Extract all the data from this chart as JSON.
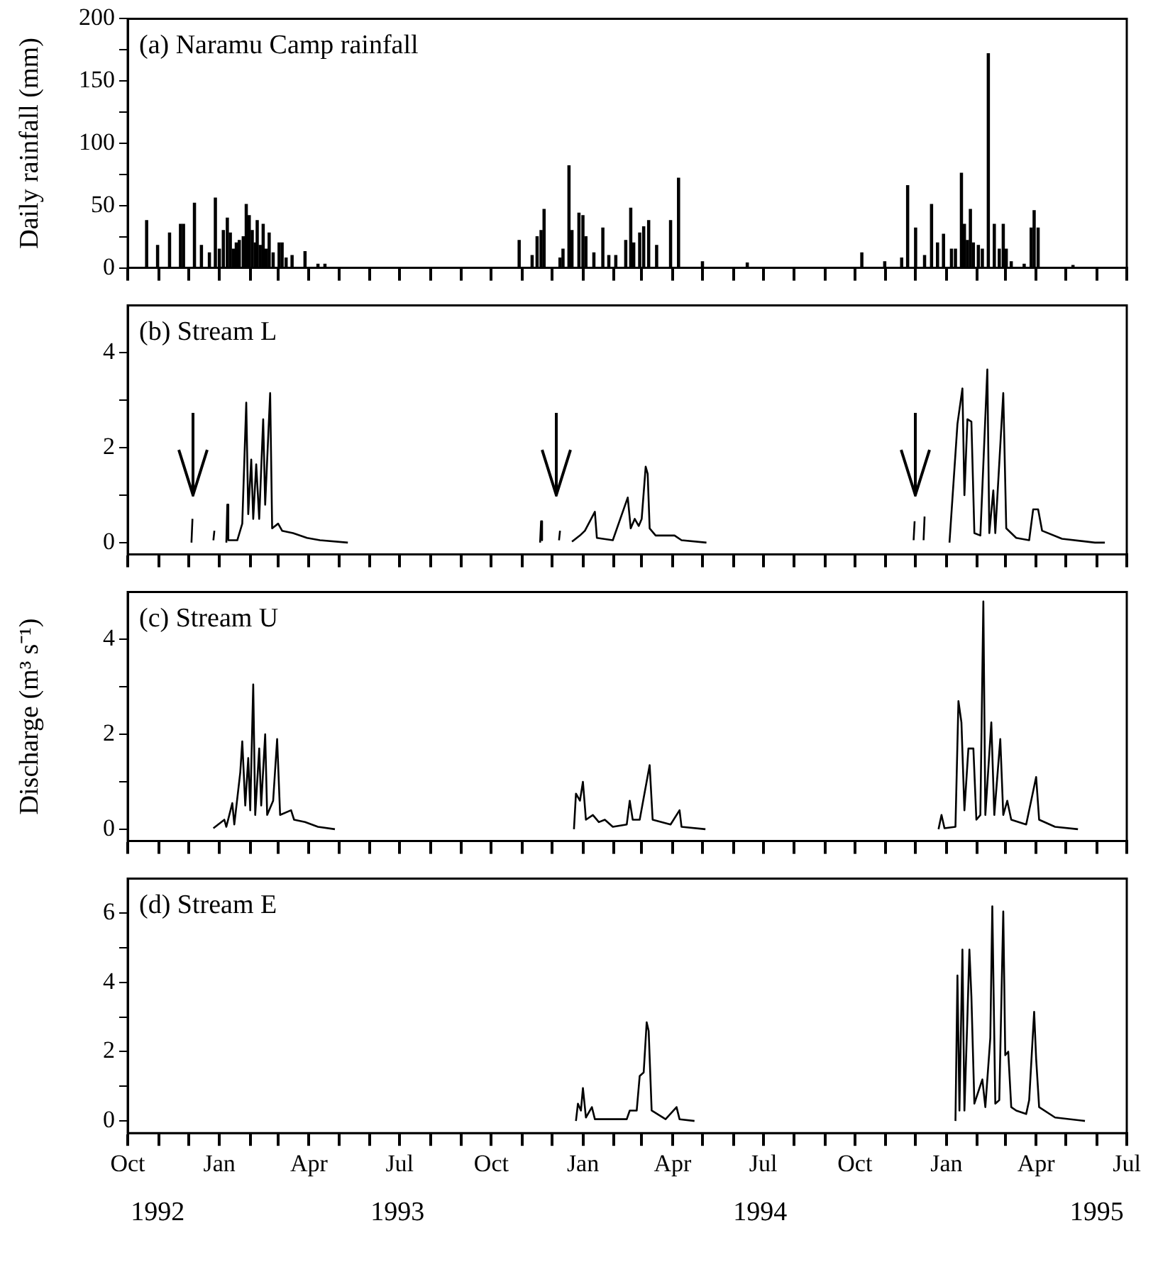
{
  "chart_data": [
    {
      "type": "bar",
      "title": "(a) Naramu Camp rainfall",
      "ylabel": "Daily rainfall (mm)",
      "tick_labels": "y",
      "grid": false,
      "legend": false,
      "xlim": [
        "1992-10-01",
        "1995-07-01"
      ],
      "xticks": [
        {
          "value": "1992-10-01",
          "label": null
        },
        {
          "value": "1992-11-01",
          "label": null
        },
        {
          "value": "1992-12-01",
          "label": null
        },
        {
          "value": "1993-01-01",
          "label": null
        },
        {
          "value": "1993-02-01",
          "label": null
        },
        {
          "value": "1993-03-01",
          "label": null
        },
        {
          "value": "1993-04-01",
          "label": null
        },
        {
          "value": "1993-05-01",
          "label": null
        },
        {
          "value": "1993-06-01",
          "label": null
        },
        {
          "value": "1993-07-01",
          "label": null
        },
        {
          "value": "1993-08-01",
          "label": null
        },
        {
          "value": "1993-09-01",
          "label": null
        },
        {
          "value": "1993-10-01",
          "label": null
        },
        {
          "value": "1993-11-01",
          "label": null
        },
        {
          "value": "1993-12-01",
          "label": null
        },
        {
          "value": "1994-01-01",
          "label": null
        },
        {
          "value": "1994-02-01",
          "label": null
        },
        {
          "value": "1994-03-01",
          "label": null
        },
        {
          "value": "1994-04-01",
          "label": null
        },
        {
          "value": "1994-05-01",
          "label": null
        },
        {
          "value": "1994-06-01",
          "label": null
        },
        {
          "value": "1994-07-01",
          "label": null
        },
        {
          "value": "1994-08-01",
          "label": null
        },
        {
          "value": "1994-09-01",
          "label": null
        },
        {
          "value": "1994-10-01",
          "label": null
        },
        {
          "value": "1994-11-01",
          "label": null
        },
        {
          "value": "1994-12-01",
          "label": null
        },
        {
          "value": "1995-01-01",
          "label": null
        },
        {
          "value": "1995-02-01",
          "label": null
        },
        {
          "value": "1995-03-01",
          "label": null
        },
        {
          "value": "1995-04-01",
          "label": null
        },
        {
          "value": "1995-05-01",
          "label": null
        },
        {
          "value": "1995-06-01",
          "label": null
        },
        {
          "value": "1995-07-01",
          "label": null
        }
      ],
      "ylim": [
        0,
        200
      ],
      "yticks": [
        0,
        {
          "value": 25,
          "label": null
        },
        50,
        {
          "value": 75,
          "label": null
        },
        100,
        {
          "value": 125,
          "label": null
        },
        150,
        {
          "value": 175,
          "label": null
        },
        200
      ],
      "series": [
        {
          "color": "#000000",
          "x": [
            "1992-10-20",
            "1992-10-31",
            "1992-11-12",
            "1992-11-23",
            "1992-11-26",
            "1992-12-07",
            "1992-12-14",
            "1992-12-22",
            "1992-12-28",
            "1993-01-01",
            "1993-01-05",
            "1993-01-09",
            "1993-01-12",
            "1993-01-15",
            "1993-01-18",
            "1993-01-21",
            "1993-01-25",
            "1993-01-28",
            "1993-01-31",
            "1993-02-03",
            "1993-02-06",
            "1993-02-08",
            "1993-02-11",
            "1993-02-14",
            "1993-02-17",
            "1993-02-20",
            "1993-02-24",
            "1993-03-02",
            "1993-03-05",
            "1993-03-09",
            "1993-03-15",
            "1993-03-28",
            "1993-04-10",
            "1993-04-17",
            "1993-10-29",
            "1993-11-11",
            "1993-11-16",
            "1993-11-20",
            "1993-11-23",
            "1993-12-09",
            "1993-12-12",
            "1993-12-18",
            "1993-12-21",
            "1993-12-28",
            "1994-01-01",
            "1994-01-04",
            "1994-01-12",
            "1994-01-21",
            "1994-01-27",
            "1994-02-03",
            "1994-02-13",
            "1994-02-18",
            "1994-02-21",
            "1994-02-27",
            "1994-03-03",
            "1994-03-08",
            "1994-03-16",
            "1994-03-30",
            "1994-04-07",
            "1994-05-01",
            "1994-06-15",
            "1994-10-08",
            "1994-10-31",
            "1994-11-17",
            "1994-11-23",
            "1994-12-01",
            "1994-12-10",
            "1994-12-17",
            "1994-12-23",
            "1994-12-29",
            "1995-01-06",
            "1995-01-10",
            "1995-01-16",
            "1995-01-19",
            "1995-01-22",
            "1995-01-25",
            "1995-01-28",
            "1995-02-02",
            "1995-02-06",
            "1995-02-12",
            "1995-02-18",
            "1995-02-23",
            "1995-02-27",
            "1995-03-02",
            "1995-03-07",
            "1995-03-20",
            "1995-03-27",
            "1995-03-30",
            "1995-04-03",
            "1995-05-08"
          ],
          "values": [
            38,
            18,
            28,
            35,
            35,
            52,
            18,
            12,
            56,
            15,
            30,
            40,
            28,
            15,
            20,
            22,
            25,
            51,
            42,
            30,
            20,
            38,
            18,
            35,
            15,
            28,
            12,
            20,
            20,
            8,
            10,
            13,
            3,
            3,
            22,
            10,
            25,
            30,
            47,
            8,
            15,
            82,
            30,
            44,
            42,
            25,
            12,
            32,
            10,
            10,
            22,
            48,
            20,
            28,
            33,
            38,
            18,
            38,
            72,
            5,
            4,
            12,
            5,
            8,
            66,
            32,
            10,
            51,
            20,
            27,
            15,
            15,
            76,
            35,
            22,
            47,
            20,
            18,
            15,
            172,
            35,
            15,
            35,
            15,
            5,
            3,
            32,
            46,
            32,
            2
          ]
        }
      ]
    },
    {
      "type": "line",
      "title": "(b) Stream L",
      "tick_labels": "y",
      "grid": false,
      "legend": false,
      "xlim": [
        "1992-10-01",
        "1995-07-01"
      ],
      "xticks": [
        {
          "value": "1992-10-01",
          "label": null
        },
        {
          "value": "1992-11-01",
          "label": null
        },
        {
          "value": "1992-12-01",
          "label": null
        },
        {
          "value": "1993-01-01",
          "label": null
        },
        {
          "value": "1993-02-01",
          "label": null
        },
        {
          "value": "1993-03-01",
          "label": null
        },
        {
          "value": "1993-04-01",
          "label": null
        },
        {
          "value": "1993-05-01",
          "label": null
        },
        {
          "value": "1993-06-01",
          "label": null
        },
        {
          "value": "1993-07-01",
          "label": null
        },
        {
          "value": "1993-08-01",
          "label": null
        },
        {
          "value": "1993-09-01",
          "label": null
        },
        {
          "value": "1993-10-01",
          "label": null
        },
        {
          "value": "1993-11-01",
          "label": null
        },
        {
          "value": "1993-12-01",
          "label": null
        },
        {
          "value": "1994-01-01",
          "label": null
        },
        {
          "value": "1994-02-01",
          "label": null
        },
        {
          "value": "1994-03-01",
          "label": null
        },
        {
          "value": "1994-04-01",
          "label": null
        },
        {
          "value": "1994-05-01",
          "label": null
        },
        {
          "value": "1994-06-01",
          "label": null
        },
        {
          "value": "1994-07-01",
          "label": null
        },
        {
          "value": "1994-08-01",
          "label": null
        },
        {
          "value": "1994-09-01",
          "label": null
        },
        {
          "value": "1994-10-01",
          "label": null
        },
        {
          "value": "1994-11-01",
          "label": null
        },
        {
          "value": "1994-12-01",
          "label": null
        },
        {
          "value": "1995-01-01",
          "label": null
        },
        {
          "value": "1995-02-01",
          "label": null
        },
        {
          "value": "1995-03-01",
          "label": null
        },
        {
          "value": "1995-04-01",
          "label": null
        },
        {
          "value": "1995-05-01",
          "label": null
        },
        {
          "value": "1995-06-01",
          "label": null
        },
        {
          "value": "1995-07-01",
          "label": null
        }
      ],
      "ylim": [
        -0.25,
        5
      ],
      "yticks": [
        0,
        {
          "value": 1,
          "label": null
        },
        2,
        {
          "value": 3,
          "label": null
        },
        4
      ],
      "series": [
        {
          "color": "#000000",
          "x": [
            "1992-12-04",
            "1992-12-05",
            "1992-12-06",
            "1992-12-26",
            "1992-12-27",
            "1992-12-28",
            "1993-01-08",
            "1993-01-09",
            "1993-01-10",
            "1993-01-19",
            "1993-01-24",
            "1993-01-28",
            "1993-01-30",
            "1993-02-02",
            "1993-02-04",
            "1993-02-07",
            "1993-02-10",
            "1993-02-14",
            "1993-02-16",
            "1993-02-21",
            "1993-02-23",
            "1993-03-01",
            "1993-03-05",
            "1993-03-16",
            "1993-03-30",
            "1993-04-12",
            "1993-05-10",
            "1993-05-11",
            "1993-11-19",
            "1993-11-20",
            "1993-11-21",
            "1993-11-22",
            "1993-12-08",
            "1993-12-09",
            "1993-12-10",
            "1993-12-21",
            "1993-12-29",
            "1994-01-03",
            "1994-01-13",
            "1994-01-15",
            "1994-01-31",
            "1994-02-15",
            "1994-02-18",
            "1994-02-22",
            "1994-02-26",
            "1994-03-01",
            "1994-03-05",
            "1994-03-07",
            "1994-03-09",
            "1994-03-15",
            "1994-04-03",
            "1994-04-10",
            "1994-05-05",
            "1994-05-06",
            "1994-11-29",
            "1994-11-30",
            "1994-12-01",
            "1994-12-09",
            "1994-12-10",
            "1994-12-11",
            "1995-01-04",
            "1995-01-12",
            "1995-01-17",
            "1995-01-19",
            "1995-01-22",
            "1995-01-26",
            "1995-01-29",
            "1995-02-04",
            "1995-02-11",
            "1995-02-13",
            "1995-02-17",
            "1995-02-19",
            "1995-02-27",
            "1995-03-02",
            "1995-03-12",
            "1995-03-25",
            "1995-03-29",
            "1995-04-03",
            "1995-04-07",
            "1995-04-27",
            "1995-05-30",
            "1995-06-09"
          ],
          "values": [
            0,
            0.5,
            null,
            0.05,
            0.25,
            null,
            0,
            0.8,
            0.05,
            0.05,
            0.4,
            2.95,
            0.6,
            1.75,
            0.5,
            1.65,
            0.5,
            2.6,
            0.8,
            3.15,
            0.3,
            0.4,
            0.25,
            0.2,
            0.1,
            0.05,
            0,
            null,
            0,
            0.45,
            0.05,
            null,
            0.05,
            0.25,
            null,
            0.02,
            0.15,
            0.25,
            0.65,
            0.1,
            0.05,
            0.95,
            0.3,
            0.5,
            0.35,
            0.5,
            1.6,
            1.45,
            0.3,
            0.15,
            0.15,
            0.05,
            0,
            null,
            0.05,
            0.45,
            null,
            0.05,
            0.55,
            null,
            0,
            2.5,
            3.25,
            1.0,
            2.6,
            2.55,
            0.2,
            0.15,
            3.65,
            0.2,
            1.1,
            0.2,
            3.15,
            0.3,
            0.1,
            0.05,
            0.7,
            0.7,
            0.25,
            0.08,
            0,
            0
          ]
        }
      ]
    },
    {
      "type": "line",
      "title": "(c) Stream U",
      "ylabel": "Discharge (m³ s⁻¹)",
      "tick_labels": "y",
      "grid": false,
      "legend": false,
      "xlim": [
        "1992-10-01",
        "1995-07-01"
      ],
      "xticks": [
        {
          "value": "1992-10-01",
          "label": null
        },
        {
          "value": "1992-11-01",
          "label": null
        },
        {
          "value": "1992-12-01",
          "label": null
        },
        {
          "value": "1993-01-01",
          "label": null
        },
        {
          "value": "1993-02-01",
          "label": null
        },
        {
          "value": "1993-03-01",
          "label": null
        },
        {
          "value": "1993-04-01",
          "label": null
        },
        {
          "value": "1993-05-01",
          "label": null
        },
        {
          "value": "1993-06-01",
          "label": null
        },
        {
          "value": "1993-07-01",
          "label": null
        },
        {
          "value": "1993-08-01",
          "label": null
        },
        {
          "value": "1993-09-01",
          "label": null
        },
        {
          "value": "1993-10-01",
          "label": null
        },
        {
          "value": "1993-11-01",
          "label": null
        },
        {
          "value": "1993-12-01",
          "label": null
        },
        {
          "value": "1994-01-01",
          "label": null
        },
        {
          "value": "1994-02-01",
          "label": null
        },
        {
          "value": "1994-03-01",
          "label": null
        },
        {
          "value": "1994-04-01",
          "label": null
        },
        {
          "value": "1994-05-01",
          "label": null
        },
        {
          "value": "1994-06-01",
          "label": null
        },
        {
          "value": "1994-07-01",
          "label": null
        },
        {
          "value": "1994-08-01",
          "label": null
        },
        {
          "value": "1994-09-01",
          "label": null
        },
        {
          "value": "1994-10-01",
          "label": null
        },
        {
          "value": "1994-11-01",
          "label": null
        },
        {
          "value": "1994-12-01",
          "label": null
        },
        {
          "value": "1995-01-01",
          "label": null
        },
        {
          "value": "1995-02-01",
          "label": null
        },
        {
          "value": "1995-03-01",
          "label": null
        },
        {
          "value": "1995-04-01",
          "label": null
        },
        {
          "value": "1995-05-01",
          "label": null
        },
        {
          "value": "1995-06-01",
          "label": null
        },
        {
          "value": "1995-07-01",
          "label": null
        }
      ],
      "ylim": [
        -0.25,
        5
      ],
      "yticks": [
        0,
        {
          "value": 1,
          "label": null
        },
        2,
        {
          "value": 3,
          "label": null
        },
        4
      ],
      "series": [
        {
          "color": "#000000",
          "x": [
            "1992-12-26",
            "1993-01-06",
            "1993-01-08",
            "1993-01-14",
            "1993-01-16",
            "1993-01-22",
            "1993-01-24",
            "1993-01-27",
            "1993-01-30",
            "1993-02-01",
            "1993-02-04",
            "1993-02-06",
            "1993-02-10",
            "1993-02-12",
            "1993-02-16",
            "1993-02-18",
            "1993-02-24",
            "1993-02-28",
            "1993-03-03",
            "1993-03-14",
            "1993-03-17",
            "1993-03-28",
            "1993-04-10",
            "1993-04-27",
            "1993-04-28",
            "1993-12-23",
            "1993-12-25",
            "1993-12-29",
            "1994-01-01",
            "1994-01-04",
            "1994-01-11",
            "1994-01-17",
            "1994-01-23",
            "1994-01-31",
            "1994-02-14",
            "1994-02-17",
            "1994-02-20",
            "1994-02-27",
            "1994-03-09",
            "1994-03-12",
            "1994-03-30",
            "1994-04-08",
            "1994-04-10",
            "1994-05-04",
            "1994-05-05",
            "1994-12-24",
            "1994-12-27",
            "1994-12-30",
            "1995-01-10",
            "1995-01-13",
            "1995-01-16",
            "1995-01-19",
            "1995-01-23",
            "1995-01-28",
            "1995-01-31",
            "1995-02-04",
            "1995-02-07",
            "1995-02-09",
            "1995-02-15",
            "1995-02-18",
            "1995-02-24",
            "1995-02-27",
            "1995-03-03",
            "1995-03-07",
            "1995-03-22",
            "1995-03-26",
            "1995-04-01",
            "1995-04-04",
            "1995-04-20",
            "1995-05-13"
          ],
          "values": [
            0.02,
            0.2,
            0.05,
            0.55,
            0.1,
            1.2,
            1.85,
            0.5,
            1.5,
            0.4,
            3.05,
            0.3,
            1.7,
            0.5,
            2.0,
            0.3,
            0.6,
            1.9,
            0.3,
            0.4,
            0.2,
            0.15,
            0.05,
            0,
            null,
            0,
            0.75,
            0.6,
            1.0,
            0.2,
            0.3,
            0.15,
            0.2,
            0.05,
            0.1,
            0.6,
            0.2,
            0.2,
            1.35,
            0.2,
            0.1,
            0.4,
            0.05,
            0,
            null,
            0,
            0.3,
            0.02,
            0.05,
            2.7,
            2.25,
            0.4,
            1.7,
            1.7,
            0.2,
            0.3,
            4.8,
            0.3,
            2.25,
            0.3,
            1.9,
            0.3,
            0.6,
            0.2,
            0.1,
            0.5,
            1.1,
            0.2,
            0.05,
            0
          ]
        }
      ]
    },
    {
      "type": "line",
      "title": "(d) Stream E",
      "grid": false,
      "legend": false,
      "annotations": [
        "1992",
        "1993",
        "1994",
        "1995"
      ],
      "xlim": [
        "1992-10-01",
        "1995-07-01"
      ],
      "xticks": [
        {
          "value": "1992-10-01",
          "label": "Oct"
        },
        {
          "value": "1992-11-01",
          "label": null
        },
        {
          "value": "1992-12-01",
          "label": null
        },
        {
          "value": "1993-01-01",
          "label": "Jan"
        },
        {
          "value": "1993-02-01",
          "label": null
        },
        {
          "value": "1993-03-01",
          "label": null
        },
        {
          "value": "1993-04-01",
          "label": "Apr"
        },
        {
          "value": "1993-05-01",
          "label": null
        },
        {
          "value": "1993-06-01",
          "label": null
        },
        {
          "value": "1993-07-01",
          "label": "Jul"
        },
        {
          "value": "1993-08-01",
          "label": null
        },
        {
          "value": "1993-09-01",
          "label": null
        },
        {
          "value": "1993-10-01",
          "label": "Oct"
        },
        {
          "value": "1993-11-01",
          "label": null
        },
        {
          "value": "1993-12-01",
          "label": null
        },
        {
          "value": "1994-01-01",
          "label": "Jan"
        },
        {
          "value": "1994-02-01",
          "label": null
        },
        {
          "value": "1994-03-01",
          "label": null
        },
        {
          "value": "1994-04-01",
          "label": "Apr"
        },
        {
          "value": "1994-05-01",
          "label": null
        },
        {
          "value": "1994-06-01",
          "label": null
        },
        {
          "value": "1994-07-01",
          "label": "Jul"
        },
        {
          "value": "1994-08-01",
          "label": null
        },
        {
          "value": "1994-09-01",
          "label": null
        },
        {
          "value": "1994-10-01",
          "label": "Oct"
        },
        {
          "value": "1994-11-01",
          "label": null
        },
        {
          "value": "1994-12-01",
          "label": null
        },
        {
          "value": "1995-01-01",
          "label": "Jan"
        },
        {
          "value": "1995-02-01",
          "label": null
        },
        {
          "value": "1995-03-01",
          "label": null
        },
        {
          "value": "1995-04-01",
          "label": "Apr"
        },
        {
          "value": "1995-05-01",
          "label": null
        },
        {
          "value": "1995-06-01",
          "label": null
        },
        {
          "value": "1995-07-01",
          "label": "Jul"
        }
      ],
      "ylim": [
        -0.35,
        7
      ],
      "yticks": [
        0,
        {
          "value": 1,
          "label": null
        },
        2,
        {
          "value": 3,
          "label": null
        },
        4,
        {
          "value": 5,
          "label": null
        },
        6
      ],
      "series": [
        {
          "color": "#000000",
          "x": [
            "1993-12-25",
            "1993-12-27",
            "1993-12-30",
            "1994-01-01",
            "1994-01-04",
            "1994-01-10",
            "1994-01-13",
            "1994-02-14",
            "1994-02-17",
            "1994-02-24",
            "1994-02-27",
            "1994-03-03",
            "1994-03-06",
            "1994-03-08",
            "1994-03-11",
            "1994-03-25",
            "1994-04-05",
            "1994-04-08",
            "1994-04-23",
            "1994-04-24",
            "1995-01-10",
            "1995-01-12",
            "1995-01-14",
            "1995-01-17",
            "1995-01-19",
            "1995-01-22",
            "1995-01-24",
            "1995-01-26",
            "1995-01-29",
            "1995-02-06",
            "1995-02-09",
            "1995-02-14",
            "1995-02-16",
            "1995-02-19",
            "1995-02-23",
            "1995-02-27",
            "1995-03-01",
            "1995-03-04",
            "1995-03-07",
            "1995-03-12",
            "1995-03-22",
            "1995-03-25",
            "1995-03-30",
            "1995-04-01",
            "1995-04-04",
            "1995-04-20",
            "1995-05-20"
          ],
          "values": [
            0,
            0.5,
            0.3,
            0.95,
            0.1,
            0.4,
            0.05,
            0.05,
            0.3,
            0.3,
            1.3,
            1.4,
            2.85,
            2.6,
            0.3,
            0.05,
            0.4,
            0.05,
            0,
            null,
            0,
            4.2,
            0.3,
            4.95,
            0.3,
            3.0,
            4.95,
            3.6,
            0.5,
            1.2,
            0.4,
            2.4,
            6.2,
            0.5,
            0.6,
            6.05,
            1.9,
            2.0,
            0.4,
            0.3,
            0.2,
            0.6,
            3.15,
            1.8,
            0.4,
            0.1,
            0
          ]
        }
      ]
    }
  ]
}
